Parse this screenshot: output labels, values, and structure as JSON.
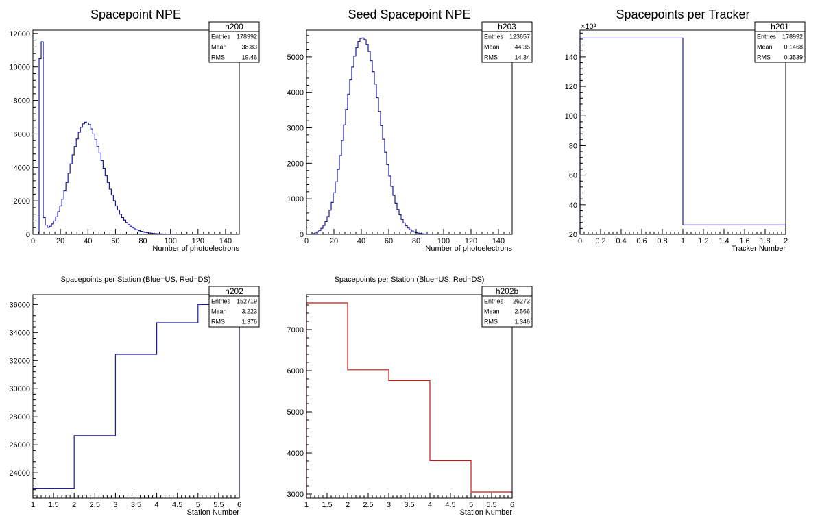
{
  "chart_data": [
    {
      "type": "histogram",
      "id": "h200",
      "title": "Spacepoint NPE",
      "xlabel": "Number of photoelectrons",
      "ylabel": "",
      "xlim": [
        0,
        150
      ],
      "ylim": [
        0,
        12200
      ],
      "xticks": [
        0,
        20,
        40,
        60,
        80,
        100,
        120,
        140
      ],
      "yticks": [
        0,
        2000,
        4000,
        6000,
        8000,
        10000,
        12000
      ],
      "color": "#1a1aa0",
      "stats": {
        "name": "h200",
        "rows": [
          {
            "label": "Entries",
            "value": "178992"
          },
          {
            "label": "Mean",
            "value": "38.83"
          },
          {
            "label": "RMS",
            "value": "19.46"
          }
        ]
      },
      "bin_width": 1.5,
      "x_start": 4.5,
      "values": [
        10500,
        11500,
        1000,
        550,
        420,
        480,
        620,
        800,
        1050,
        1350,
        1700,
        2100,
        2600,
        3100,
        3650,
        4200,
        4750,
        5250,
        5700,
        6100,
        6400,
        6600,
        6700,
        6650,
        6550,
        6300,
        6000,
        5650,
        5250,
        4850,
        4400,
        3950,
        3500,
        3100,
        2700,
        2350,
        2000,
        1700,
        1450,
        1200,
        1000,
        850,
        700,
        580,
        480,
        400,
        330,
        270,
        220,
        180,
        150,
        120,
        100,
        80,
        65,
        52,
        42,
        34,
        27,
        22,
        17,
        13,
        10,
        8,
        6,
        5,
        4,
        3,
        2,
        1,
        1
      ]
    },
    {
      "type": "histogram",
      "id": "h203",
      "title": "Seed Spacepoint NPE",
      "xlabel": "Number of photoelectrons",
      "ylabel": "",
      "xlim": [
        0,
        150
      ],
      "ylim": [
        0,
        5750
      ],
      "xticks": [
        0,
        20,
        40,
        60,
        80,
        100,
        120,
        140
      ],
      "yticks": [
        0,
        1000,
        2000,
        3000,
        4000,
        5000
      ],
      "color": "#1a1aa0",
      "stats": {
        "name": "h203",
        "rows": [
          {
            "label": "Entries",
            "value": "123657"
          },
          {
            "label": "Mean",
            "value": "44.35"
          },
          {
            "label": "RMS",
            "value": "14.34"
          }
        ]
      },
      "bin_width": 1.5,
      "x_start": 4.5,
      "values": [
        20,
        40,
        70,
        110,
        170,
        250,
        360,
        500,
        680,
        900,
        1170,
        1480,
        1830,
        2220,
        2640,
        3080,
        3520,
        3950,
        4350,
        4710,
        5020,
        5260,
        5430,
        5520,
        5530,
        5480,
        5350,
        5150,
        4890,
        4580,
        4230,
        3850,
        3460,
        3060,
        2680,
        2310,
        1960,
        1640,
        1350,
        1100,
        880,
        700,
        550,
        420,
        320,
        240,
        180,
        130,
        95,
        68,
        48,
        34,
        24,
        16,
        11,
        8,
        5,
        3,
        2,
        1,
        1
      ]
    },
    {
      "type": "histogram",
      "id": "h201",
      "title": "Spacepoints per Tracker",
      "xlabel": "Tracker Number",
      "ylabel": "",
      "y_exponent": "×10³",
      "xlim": [
        0,
        2
      ],
      "ylim": [
        20,
        158
      ],
      "xticks": [
        0,
        0.2,
        0.4,
        0.6,
        0.8,
        1,
        1.2,
        1.4,
        1.6,
        1.8,
        2
      ],
      "yticks": [
        20,
        40,
        60,
        80,
        100,
        120,
        140
      ],
      "color": "#1a1aa0",
      "stats": {
        "name": "h201",
        "rows": [
          {
            "label": "Entries",
            "value": "178992"
          },
          {
            "label": "Mean",
            "value": "0.1468"
          },
          {
            "label": "RMS",
            "value": "0.3539"
          }
        ]
      },
      "bin_width": 1,
      "x_start": 0,
      "values": [
        152.7,
        26.3
      ]
    },
    {
      "type": "histogram",
      "id": "h202",
      "title": "Spacepoints per Station (Blue=US, Red=DS)",
      "xlabel": "Station Number",
      "ylabel": "",
      "xlim": [
        1,
        6
      ],
      "ylim": [
        22200,
        36700
      ],
      "xticks": [
        1,
        1.5,
        2,
        2.5,
        3,
        3.5,
        4,
        4.5,
        5,
        5.5,
        6
      ],
      "yticks": [
        24000,
        26000,
        28000,
        30000,
        32000,
        34000,
        36000
      ],
      "color": "#1a1aa0",
      "stats": {
        "name": "h202",
        "rows": [
          {
            "label": "Entries",
            "value": "152719"
          },
          {
            "label": "Mean",
            "value": "3.223"
          },
          {
            "label": "RMS",
            "value": "1.376"
          }
        ]
      },
      "bin_width": 1,
      "x_start": 1,
      "values": [
        22900,
        26650,
        32450,
        34700,
        36000
      ]
    },
    {
      "type": "histogram",
      "id": "h202b",
      "title": "Spacepoints per Station (Blue=US, Red=DS)",
      "xlabel": "Station Number",
      "ylabel": "",
      "xlim": [
        1,
        6
      ],
      "ylim": [
        2900,
        7850
      ],
      "xticks": [
        1,
        1.5,
        2,
        2.5,
        3,
        3.5,
        4,
        4.5,
        5,
        5.5,
        6
      ],
      "yticks": [
        3000,
        4000,
        5000,
        6000,
        7000
      ],
      "color": "#cc1111",
      "stats": {
        "name": "h202b",
        "rows": [
          {
            "label": "Entries",
            "value": "26273"
          },
          {
            "label": "Mean",
            "value": "2.566"
          },
          {
            "label": "RMS",
            "value": "1.346"
          }
        ]
      },
      "bin_width": 1,
      "x_start": 1,
      "values": [
        7650,
        6020,
        5760,
        3810,
        3050
      ]
    }
  ]
}
